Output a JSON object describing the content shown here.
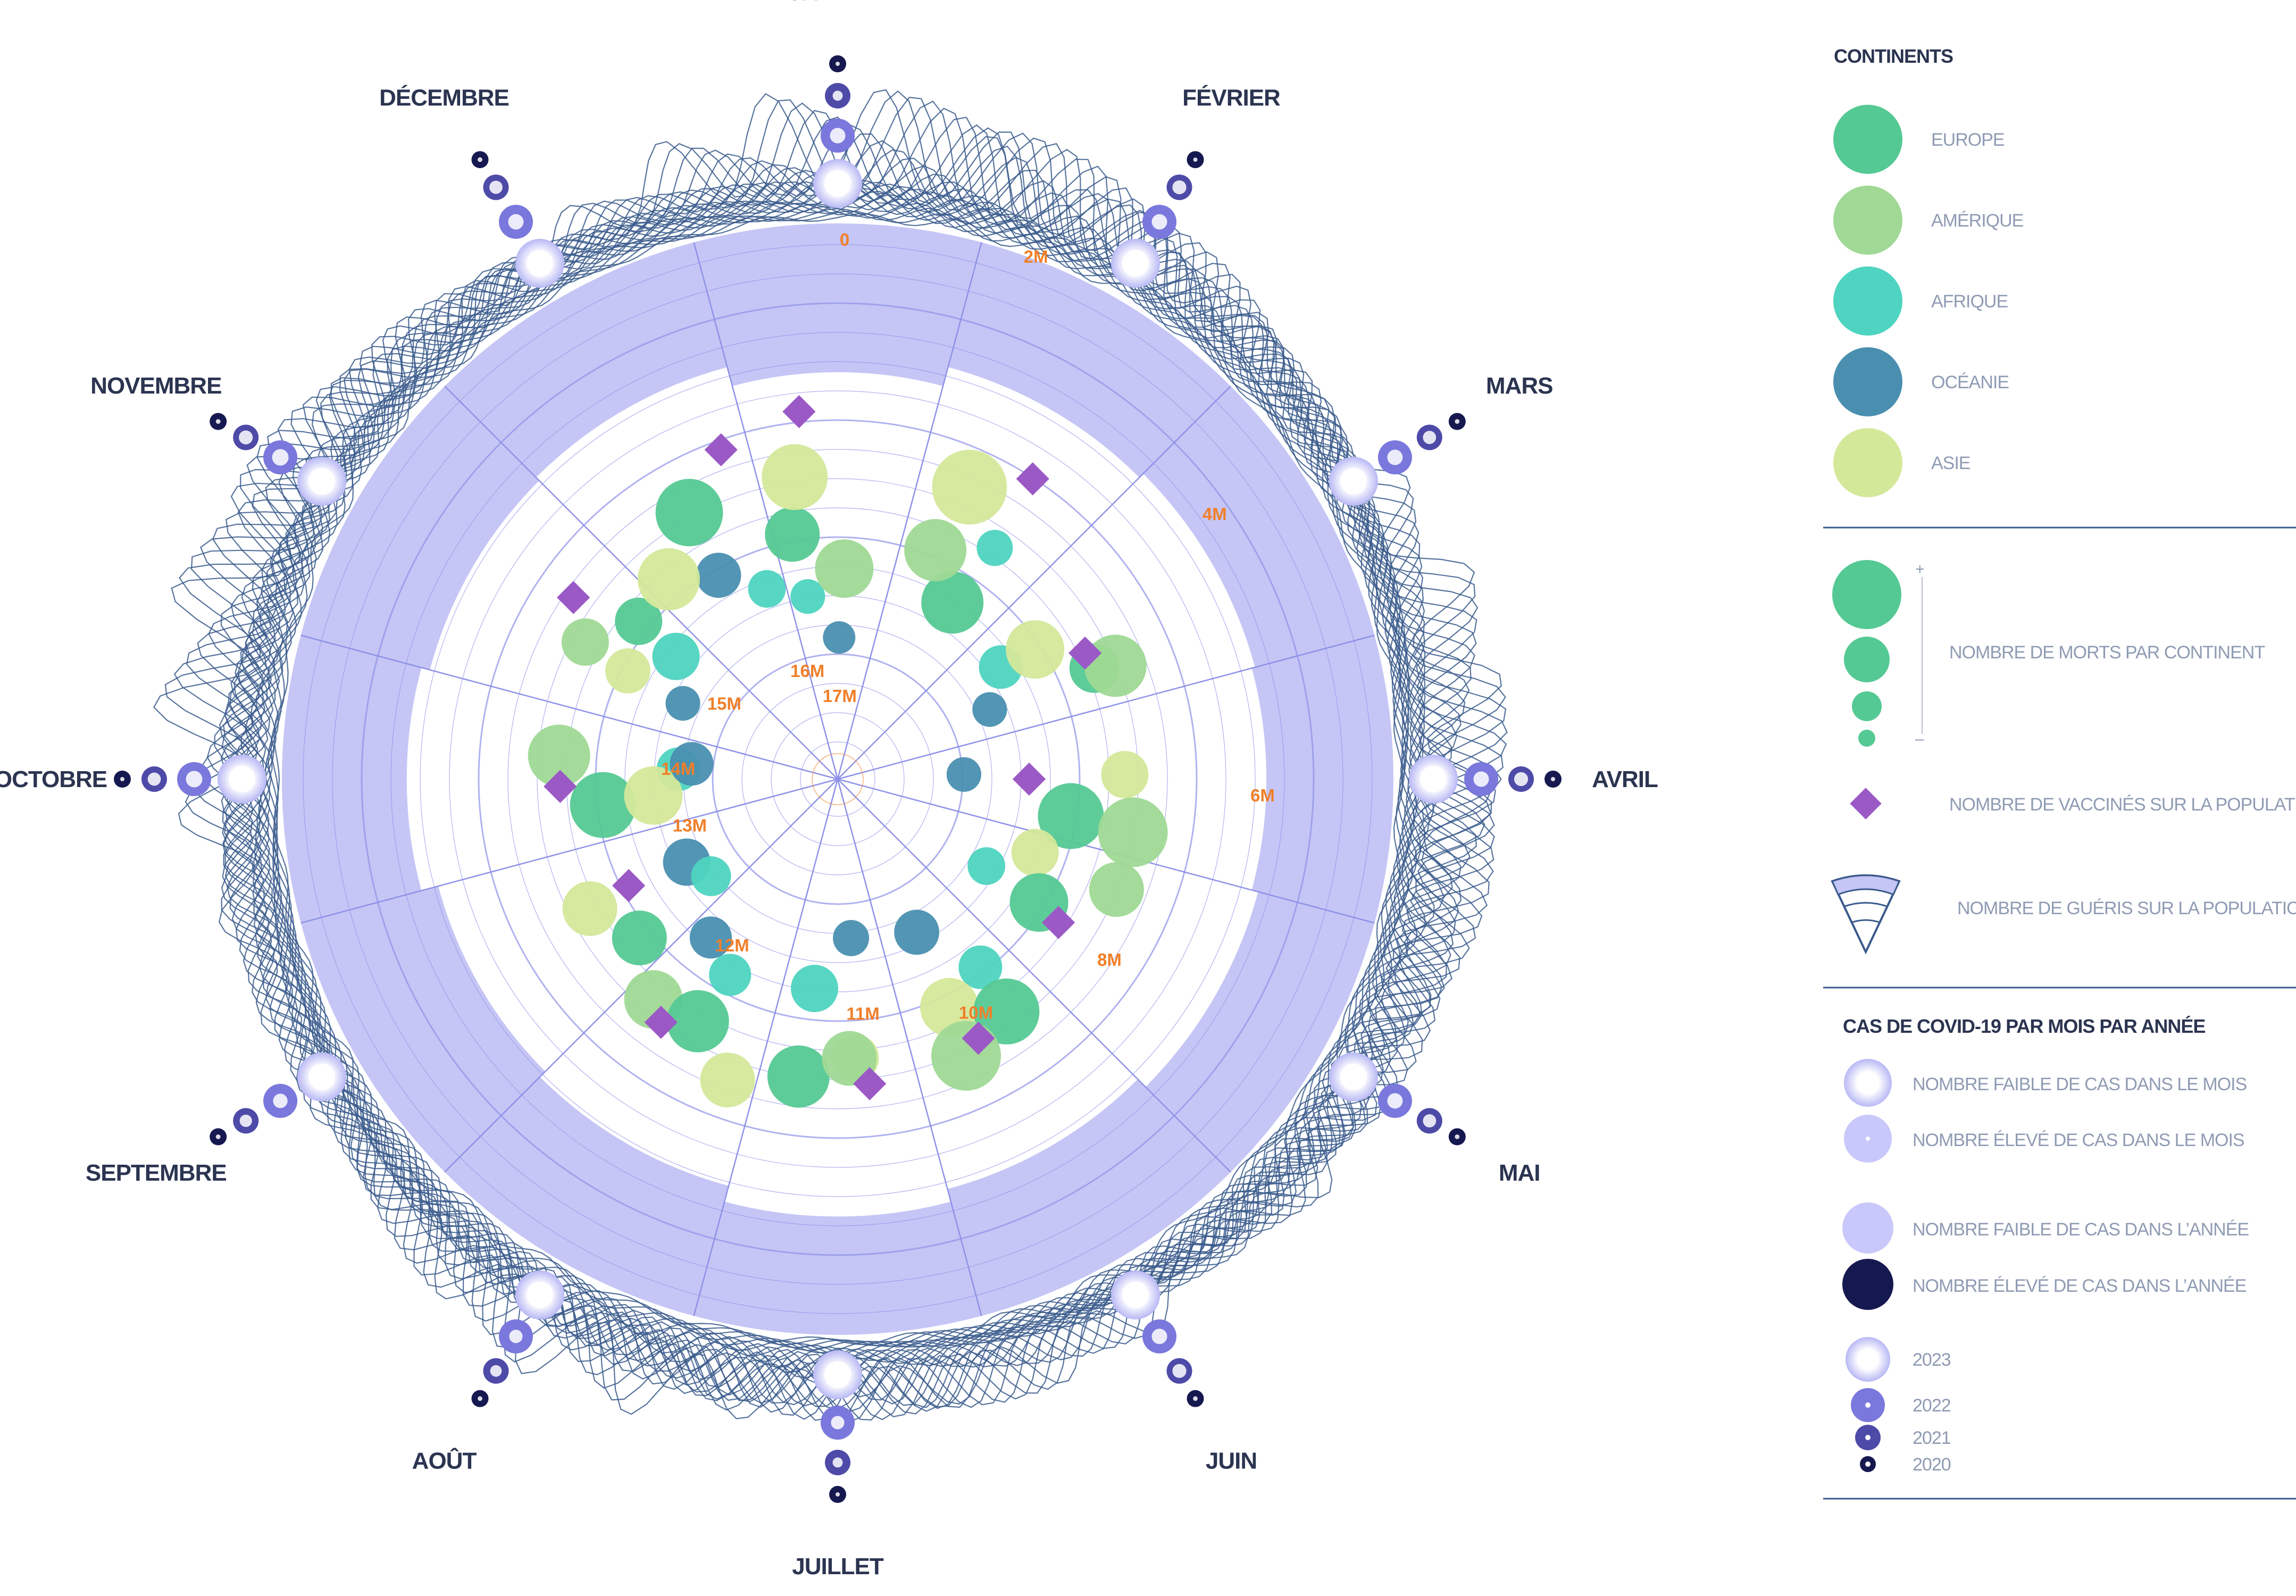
{
  "chart_data": {
    "type": "radial",
    "title": "Cas de COVID-19 par mois par année",
    "months": [
      "JANVIER",
      "FÉVRIER",
      "MARS",
      "AVRIL",
      "MAI",
      "JUIN",
      "JUILLET",
      "AOÛT",
      "SEPTEMBRE",
      "OCTOBRE",
      "NOVEMBRE",
      "DÉCEMBRE"
    ],
    "years": [
      "2023",
      "2022",
      "2021",
      "2020"
    ],
    "recovered_scale": [
      "0",
      "2M",
      "4M",
      "6M",
      "8M",
      "10M",
      "11M",
      "12M",
      "13M",
      "14M",
      "15M",
      "16M",
      "17M"
    ],
    "continents": [
      {
        "name": "EUROPE",
        "color": "#55c994"
      },
      {
        "name": "AMÉRIQUE",
        "color": "#9fd995"
      },
      {
        "name": "AFRIQUE",
        "color": "#4ed4c0"
      },
      {
        "name": "OCÉANIE",
        "color": "#4a8fb0"
      },
      {
        "name": "ASIE",
        "color": "#d4e89a"
      }
    ],
    "monthly_cases": [
      {
        "month": "JANVIER",
        "levels": [
          0.2,
          0.4,
          0.55,
          0.9
        ]
      },
      {
        "month": "FÉVRIER",
        "levels": [
          0.2,
          0.4,
          0.3,
          0.9
        ]
      },
      {
        "month": "MARS",
        "levels": [
          0.2,
          0.4,
          0.35,
          0.85
        ]
      },
      {
        "month": "AVRIL",
        "levels": [
          0.2,
          0.4,
          0.3,
          0.9
        ]
      },
      {
        "month": "MAI",
        "levels": [
          0.2,
          0.4,
          0.35,
          0.85
        ]
      },
      {
        "month": "JUIN",
        "levels": [
          0.2,
          0.4,
          0.3,
          0.85
        ]
      },
      {
        "month": "JUILLET",
        "levels": [
          0.2,
          0.5,
          0.55,
          0.9
        ]
      },
      {
        "month": "AOÛT",
        "levels": [
          0.2,
          0.5,
          0.45,
          0.85
        ]
      },
      {
        "month": "SEPTEMBRE",
        "levels": [
          0.2,
          0.45,
          0.4,
          0.85
        ]
      },
      {
        "month": "OCTOBRE",
        "levels": [
          0.2,
          0.35,
          0.35,
          0.9
        ]
      },
      {
        "month": "NOVEMBRE",
        "levels": [
          0.2,
          0.35,
          0.3,
          0.85
        ]
      },
      {
        "month": "DÉCEMBRE",
        "levels": [
          0.2,
          0.4,
          0.35,
          0.85
        ]
      }
    ],
    "recovered_share_by_month": [
      0.78,
      0.6,
      0.55,
      0.58,
      0.52,
      0.62,
      0.5,
      0.65,
      0.72,
      0.56,
      0.64,
      0.6
    ],
    "deaths_points": [
      {
        "month": "JANVIER",
        "continent": "EUROPE",
        "value": 0.6,
        "size": 0.45
      },
      {
        "month": "JANVIER",
        "continent": "OCÉANIE",
        "value": 0.18,
        "size": 0.15
      },
      {
        "month": "JANVIER",
        "continent": "AFRIQUE",
        "value": 0.35,
        "size": 0.18
      },
      {
        "month": "JANVIER",
        "continent": "AMÉRIQUE",
        "value": 0.45,
        "size": 0.5
      },
      {
        "month": "JANVIER",
        "continent": "ASIE",
        "value": 0.82,
        "size": 0.6
      },
      {
        "month": "FÉVRIER",
        "continent": "EUROPE",
        "value": 0.45,
        "size": 0.55
      },
      {
        "month": "FÉVRIER",
        "continent": "AMÉRIQUE",
        "value": 0.6,
        "size": 0.55
      },
      {
        "month": "FÉVRIER",
        "continent": "AFRIQUE",
        "value": 0.72,
        "size": 0.2
      },
      {
        "month": "FÉVRIER",
        "continent": "ASIE",
        "value": 0.88,
        "size": 0.72
      },
      {
        "month": "MARS",
        "continent": "OCÉANIE",
        "value": 0.28,
        "size": 0.18
      },
      {
        "month": "MARS",
        "continent": "AFRIQUE",
        "value": 0.4,
        "size": 0.3
      },
      {
        "month": "MARS",
        "continent": "EUROPE",
        "value": 0.72,
        "size": 0.38
      },
      {
        "month": "MARS",
        "continent": "ASIE",
        "value": 0.55,
        "size": 0.5
      },
      {
        "month": "MARS",
        "continent": "AMÉRIQUE",
        "value": 0.8,
        "size": 0.55
      },
      {
        "month": "AVRIL",
        "continent": "OCÉANIE",
        "value": 0.12,
        "size": 0.18
      },
      {
        "month": "AVRIL",
        "continent": "EUROPE",
        "value": 0.55,
        "size": 0.6
      },
      {
        "month": "AVRIL",
        "continent": "ASIE",
        "value": 0.75,
        "size": 0.35
      },
      {
        "month": "AVRIL",
        "continent": "AMÉRIQUE",
        "value": 0.8,
        "size": 0.65
      },
      {
        "month": "MAI",
        "continent": "AFRIQUE",
        "value": 0.3,
        "size": 0.22
      },
      {
        "month": "MAI",
        "continent": "ASIE",
        "value": 0.45,
        "size": 0.35
      },
      {
        "month": "MAI",
        "continent": "EUROPE",
        "value": 0.55,
        "size": 0.5
      },
      {
        "month": "MAI",
        "continent": "AMÉRIQUE",
        "value": 0.8,
        "size": 0.45
      },
      {
        "month": "JUIN",
        "continent": "OCÉANIE",
        "value": 0.3,
        "size": 0.32
      },
      {
        "month": "JUIN",
        "continent": "AFRIQUE",
        "value": 0.55,
        "size": 0.3
      },
      {
        "month": "JUIN",
        "continent": "ASIE",
        "value": 0.62,
        "size": 0.5
      },
      {
        "month": "JUIN",
        "continent": "EUROPE",
        "value": 0.75,
        "size": 0.6
      },
      {
        "month": "JUIN",
        "continent": "AMÉRIQUE",
        "value": 0.82,
        "size": 0.65
      },
      {
        "month": "JUILLET",
        "continent": "OCÉANIE",
        "value": 0.25,
        "size": 0.2
      },
      {
        "month": "JUILLET",
        "continent": "AFRIQUE",
        "value": 0.45,
        "size": 0.35
      },
      {
        "month": "JUILLET",
        "continent": "ASIE",
        "value": 0.72,
        "size": 0.35
      },
      {
        "month": "JUILLET",
        "continent": "EUROPE",
        "value": 0.8,
        "size": 0.55
      },
      {
        "month": "JUILLET",
        "continent": "AMÉRIQUE",
        "value": 0.72,
        "size": 0.45
      },
      {
        "month": "AOÛT",
        "continent": "OCÉANIE",
        "value": 0.42,
        "size": 0.28
      },
      {
        "month": "AOÛT",
        "continent": "AFRIQUE",
        "value": 0.5,
        "size": 0.28
      },
      {
        "month": "AOÛT",
        "continent": "AMÉRIQUE",
        "value": 0.75,
        "size": 0.5
      },
      {
        "month": "AOÛT",
        "continent": "EUROPE",
        "value": 0.72,
        "size": 0.55
      },
      {
        "month": "AOÛT",
        "continent": "ASIE",
        "value": 0.88,
        "size": 0.45
      },
      {
        "month": "SEPTEMBRE",
        "continent": "OCÉANIE",
        "value": 0.3,
        "size": 0.35
      },
      {
        "month": "SEPTEMBRE",
        "continent": "EUROPE",
        "value": 0.62,
        "size": 0.45
      },
      {
        "month": "SEPTEMBRE",
        "continent": "ASIE",
        "value": 0.72,
        "size": 0.45
      },
      {
        "month": "SEPTEMBRE",
        "continent": "AFRIQUE",
        "value": 0.25,
        "size": 0.25
      },
      {
        "month": "OCTOBRE",
        "continent": "AFRIQUE",
        "value": 0.25,
        "size": 0.3
      },
      {
        "month": "OCTOBRE",
        "continent": "EUROPE",
        "value": 0.55,
        "size": 0.6
      },
      {
        "month": "OCTOBRE",
        "continent": "AMÉRIQUE",
        "value": 0.72,
        "size": 0.55
      },
      {
        "month": "OCTOBRE",
        "continent": "ASIE",
        "value": 0.35,
        "size": 0.5
      },
      {
        "month": "OCTOBRE",
        "continent": "OCÉANIE",
        "value": 0.2,
        "size": 0.3
      },
      {
        "month": "NOVEMBRE",
        "continent": "OCÉANIE",
        "value": 0.3,
        "size": 0.18
      },
      {
        "month": "NOVEMBRE",
        "continent": "AFRIQUE",
        "value": 0.42,
        "size": 0.35
      },
      {
        "month": "NOVEMBRE",
        "continent": "ASIE",
        "value": 0.55,
        "size": 0.32
      },
      {
        "month": "NOVEMBRE",
        "continent": "EUROPE",
        "value": 0.62,
        "size": 0.35
      },
      {
        "month": "NOVEMBRE",
        "continent": "AMÉRIQUE",
        "value": 0.75,
        "size": 0.35
      },
      {
        "month": "DÉCEMBRE",
        "continent": "AFRIQUE",
        "value": 0.42,
        "size": 0.22
      },
      {
        "month": "DÉCEMBRE",
        "continent": "OCÉANIE",
        "value": 0.55,
        "size": 0.32
      },
      {
        "month": "DÉCEMBRE",
        "continent": "ASIE",
        "value": 0.65,
        "size": 0.55
      },
      {
        "month": "DÉCEMBRE",
        "continent": "EUROPE",
        "value": 0.82,
        "size": 0.62
      }
    ],
    "vaccinated_by_month": [
      0.62,
      0.58,
      0.3,
      0.0,
      0.25,
      0.36,
      0.4,
      0.38,
      0.15,
      0.3,
      0.45,
      0.55
    ],
    "vaccinated_month_offsets": [
      0.3,
      0.6,
      0.6,
      0.5,
      0.6,
      0.55,
      0.3,
      0.7,
      0.6,
      0.45,
      0.65,
      0.85
    ]
  },
  "legend": {
    "continents_title": "CONTINENTS",
    "deaths_label": "NOMBRE DE MORTS PAR CONTINENT",
    "deaths_plus": "+",
    "deaths_minus": "–",
    "vaccinated_label": "NOMBRE DE VACCINÉS SUR LA POPULATION TOTALE",
    "recovered_label": "NOMBRE DE GUÉRIS SUR LA POPULATION TOTALE",
    "cases_title": "CAS DE COVID-19 PAR MOIS PAR ANNÉE",
    "low_month": "NOMBRE FAIBLE DE CAS DANS LE MOIS",
    "high_month": "NOMBRE ÉLEVÉ DE CAS DANS LE MOIS",
    "low_year": "NOMBRE FAIBLE DE CAS DANS L’ANNÉE",
    "high_year": "NOMBRE ÉLEVÉ DE CAS DANS L’ANNÉE"
  },
  "colors": {
    "ring": "#c5c6f5",
    "grid": "#8e91e8",
    "wave": "#3a5a8c",
    "vaccine": "#9b59c6",
    "scale": "#f07f2a",
    "text": "#2b3450",
    "muted": "#8f9bb3",
    "year_low": "#c8c8fa",
    "year_high": "#161850"
  }
}
